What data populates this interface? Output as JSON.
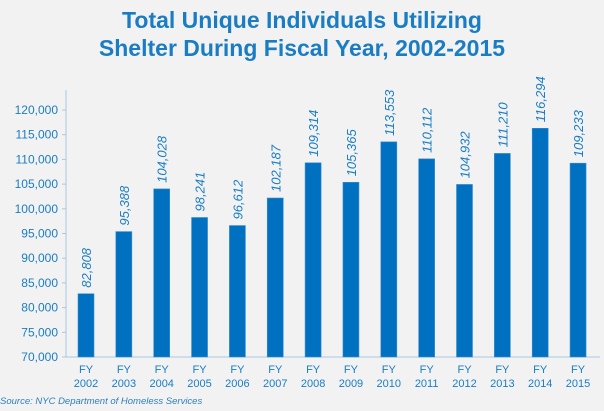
{
  "chart_data": {
    "type": "bar",
    "title_lines": [
      "Total Unique Individuals Utilizing",
      "Shelter During Fiscal Year, 2002-2015"
    ],
    "categories": [
      [
        "FY",
        "2002"
      ],
      [
        "FY",
        "2003"
      ],
      [
        "FY",
        "2004"
      ],
      [
        "FY",
        "2005"
      ],
      [
        "FY",
        "2006"
      ],
      [
        "FY",
        "2007"
      ],
      [
        "FY",
        "2008"
      ],
      [
        "FY",
        "2009"
      ],
      [
        "FY",
        "2010"
      ],
      [
        "FY",
        "2011"
      ],
      [
        "FY",
        "2012"
      ],
      [
        "FY",
        "2013"
      ],
      [
        "FY",
        "2014"
      ],
      [
        "FY",
        "2015"
      ]
    ],
    "values": [
      82808,
      95388,
      104028,
      98241,
      96612,
      102187,
      109314,
      105365,
      113553,
      110112,
      104932,
      111210,
      116294,
      109233
    ],
    "data_labels": [
      "82,808",
      "95,388",
      "104,028",
      "98,241",
      "96,612",
      "102,187",
      "109,314",
      "105,365",
      "113,553",
      "110,112",
      "104,932",
      "111,210",
      "116,294",
      "109,233"
    ],
    "ylim": [
      70000,
      120000
    ],
    "yticks": [
      70000,
      75000,
      80000,
      85000,
      90000,
      95000,
      100000,
      105000,
      110000,
      115000,
      120000
    ],
    "ytick_labels": [
      "70,000",
      "75,000",
      "80,000",
      "85,000",
      "90,000",
      "95,000",
      "100,000",
      "105,000",
      "110,000",
      "115,000",
      "120,000"
    ],
    "xlabel": "",
    "ylabel": "",
    "grid": false,
    "bar_color": "#0070c0",
    "text_color": "#1a7dc4"
  },
  "source": "Source: NYC Department of Homeless Services"
}
